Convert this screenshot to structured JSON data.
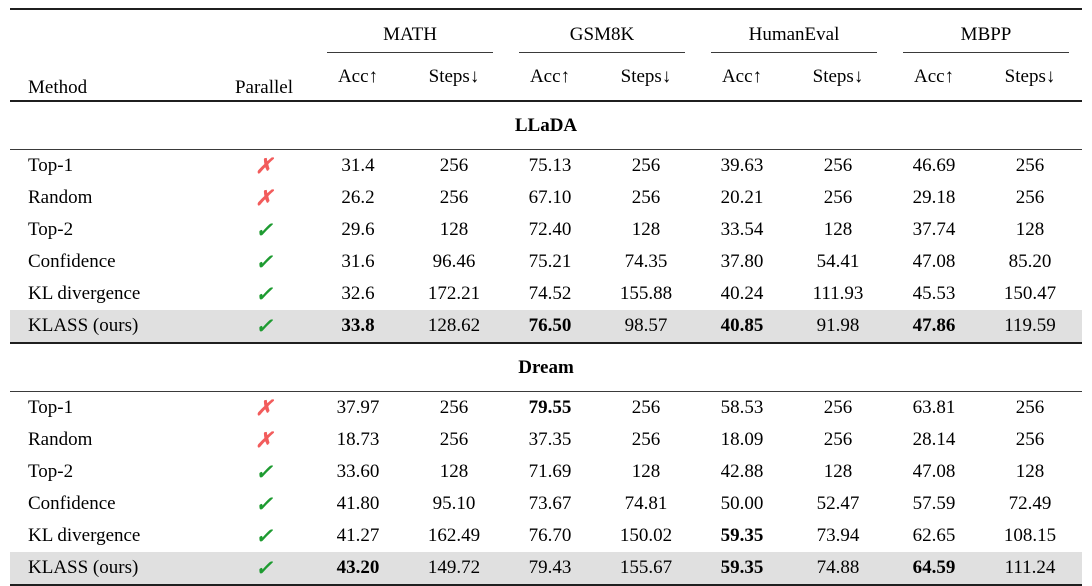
{
  "header": {
    "method": "Method",
    "parallel": "Parallel",
    "groups": [
      {
        "label": "MATH"
      },
      {
        "label": "GSM8K"
      },
      {
        "label": "HumanEval"
      },
      {
        "label": "MBPP"
      }
    ],
    "acc": "Acc↑",
    "steps": "Steps↓"
  },
  "marks": {
    "yes": "✓",
    "no": "✗"
  },
  "colors": {
    "check": "#1e9b31",
    "cross": "#f25c5c",
    "highlight": "#e0e0e0",
    "rule": "#1f1f1f"
  },
  "sections": [
    {
      "name": "LLaDA",
      "rows": [
        {
          "method": "Top-1",
          "parallel": false,
          "highlight": false,
          "bold": [],
          "values": [
            "31.4",
            "256",
            "75.13",
            "256",
            "39.63",
            "256",
            "46.69",
            "256"
          ]
        },
        {
          "method": "Random",
          "parallel": false,
          "highlight": false,
          "bold": [],
          "values": [
            "26.2",
            "256",
            "67.10",
            "256",
            "20.21",
            "256",
            "29.18",
            "256"
          ]
        },
        {
          "method": "Top-2",
          "parallel": true,
          "highlight": false,
          "bold": [],
          "values": [
            "29.6",
            "128",
            "72.40",
            "128",
            "33.54",
            "128",
            "37.74",
            "128"
          ]
        },
        {
          "method": "Confidence",
          "parallel": true,
          "highlight": false,
          "bold": [],
          "values": [
            "31.6",
            "96.46",
            "75.21",
            "74.35",
            "37.80",
            "54.41",
            "47.08",
            "85.20"
          ]
        },
        {
          "method": "KL divergence",
          "parallel": true,
          "highlight": false,
          "bold": [],
          "values": [
            "32.6",
            "172.21",
            "74.52",
            "155.88",
            "40.24",
            "111.93",
            "45.53",
            "150.47"
          ]
        },
        {
          "method": "KLASS (ours)",
          "parallel": true,
          "highlight": true,
          "bold": [
            0,
            2,
            4,
            6
          ],
          "values": [
            "33.8",
            "128.62",
            "76.50",
            "98.57",
            "40.85",
            "91.98",
            "47.86",
            "119.59"
          ]
        }
      ]
    },
    {
      "name": "Dream",
      "rows": [
        {
          "method": "Top-1",
          "parallel": false,
          "highlight": false,
          "bold": [
            2
          ],
          "values": [
            "37.97",
            "256",
            "79.55",
            "256",
            "58.53",
            "256",
            "63.81",
            "256"
          ]
        },
        {
          "method": "Random",
          "parallel": false,
          "highlight": false,
          "bold": [],
          "values": [
            "18.73",
            "256",
            "37.35",
            "256",
            "18.09",
            "256",
            "28.14",
            "256"
          ]
        },
        {
          "method": "Top-2",
          "parallel": true,
          "highlight": false,
          "bold": [],
          "values": [
            "33.60",
            "128",
            "71.69",
            "128",
            "42.88",
            "128",
            "47.08",
            "128"
          ]
        },
        {
          "method": "Confidence",
          "parallel": true,
          "highlight": false,
          "bold": [],
          "values": [
            "41.80",
            "95.10",
            "73.67",
            "74.81",
            "50.00",
            "52.47",
            "57.59",
            "72.49"
          ]
        },
        {
          "method": "KL divergence",
          "parallel": true,
          "highlight": false,
          "bold": [
            4
          ],
          "values": [
            "41.27",
            "162.49",
            "76.70",
            "150.02",
            "59.35",
            "73.94",
            "62.65",
            "108.15"
          ]
        },
        {
          "method": "KLASS (ours)",
          "parallel": true,
          "highlight": true,
          "bold": [
            0,
            4,
            6
          ],
          "values": [
            "43.20",
            "149.72",
            "79.43",
            "155.67",
            "59.35",
            "74.88",
            "64.59",
            "111.24"
          ]
        }
      ]
    }
  ]
}
